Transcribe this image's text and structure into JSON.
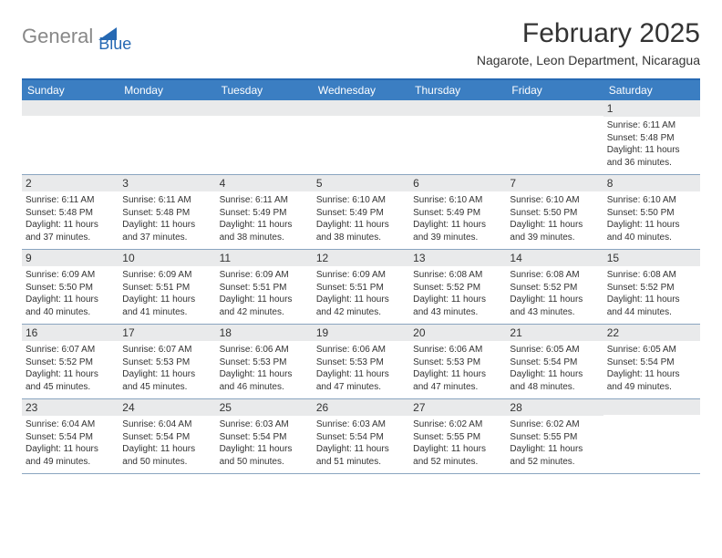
{
  "logo": {
    "part1": "General",
    "part2": "Blue"
  },
  "title": "February 2025",
  "subtitle": "Nagarote, Leon Department, Nicaragua",
  "header_bg": "#3b7ec2",
  "daynum_bg": "#e9eaeb",
  "border_color": "#8aa5c0",
  "day_headers": [
    "Sunday",
    "Monday",
    "Tuesday",
    "Wednesday",
    "Thursday",
    "Friday",
    "Saturday"
  ],
  "weeks": [
    [
      {
        "blank": true
      },
      {
        "blank": true
      },
      {
        "blank": true
      },
      {
        "blank": true
      },
      {
        "blank": true
      },
      {
        "blank": true
      },
      {
        "num": "1",
        "sunrise": "Sunrise: 6:11 AM",
        "sunset": "Sunset: 5:48 PM",
        "daylight1": "Daylight: 11 hours",
        "daylight2": "and 36 minutes."
      }
    ],
    [
      {
        "num": "2",
        "sunrise": "Sunrise: 6:11 AM",
        "sunset": "Sunset: 5:48 PM",
        "daylight1": "Daylight: 11 hours",
        "daylight2": "and 37 minutes."
      },
      {
        "num": "3",
        "sunrise": "Sunrise: 6:11 AM",
        "sunset": "Sunset: 5:48 PM",
        "daylight1": "Daylight: 11 hours",
        "daylight2": "and 37 minutes."
      },
      {
        "num": "4",
        "sunrise": "Sunrise: 6:11 AM",
        "sunset": "Sunset: 5:49 PM",
        "daylight1": "Daylight: 11 hours",
        "daylight2": "and 38 minutes."
      },
      {
        "num": "5",
        "sunrise": "Sunrise: 6:10 AM",
        "sunset": "Sunset: 5:49 PM",
        "daylight1": "Daylight: 11 hours",
        "daylight2": "and 38 minutes."
      },
      {
        "num": "6",
        "sunrise": "Sunrise: 6:10 AM",
        "sunset": "Sunset: 5:49 PM",
        "daylight1": "Daylight: 11 hours",
        "daylight2": "and 39 minutes."
      },
      {
        "num": "7",
        "sunrise": "Sunrise: 6:10 AM",
        "sunset": "Sunset: 5:50 PM",
        "daylight1": "Daylight: 11 hours",
        "daylight2": "and 39 minutes."
      },
      {
        "num": "8",
        "sunrise": "Sunrise: 6:10 AM",
        "sunset": "Sunset: 5:50 PM",
        "daylight1": "Daylight: 11 hours",
        "daylight2": "and 40 minutes."
      }
    ],
    [
      {
        "num": "9",
        "sunrise": "Sunrise: 6:09 AM",
        "sunset": "Sunset: 5:50 PM",
        "daylight1": "Daylight: 11 hours",
        "daylight2": "and 40 minutes."
      },
      {
        "num": "10",
        "sunrise": "Sunrise: 6:09 AM",
        "sunset": "Sunset: 5:51 PM",
        "daylight1": "Daylight: 11 hours",
        "daylight2": "and 41 minutes."
      },
      {
        "num": "11",
        "sunrise": "Sunrise: 6:09 AM",
        "sunset": "Sunset: 5:51 PM",
        "daylight1": "Daylight: 11 hours",
        "daylight2": "and 42 minutes."
      },
      {
        "num": "12",
        "sunrise": "Sunrise: 6:09 AM",
        "sunset": "Sunset: 5:51 PM",
        "daylight1": "Daylight: 11 hours",
        "daylight2": "and 42 minutes."
      },
      {
        "num": "13",
        "sunrise": "Sunrise: 6:08 AM",
        "sunset": "Sunset: 5:52 PM",
        "daylight1": "Daylight: 11 hours",
        "daylight2": "and 43 minutes."
      },
      {
        "num": "14",
        "sunrise": "Sunrise: 6:08 AM",
        "sunset": "Sunset: 5:52 PM",
        "daylight1": "Daylight: 11 hours",
        "daylight2": "and 43 minutes."
      },
      {
        "num": "15",
        "sunrise": "Sunrise: 6:08 AM",
        "sunset": "Sunset: 5:52 PM",
        "daylight1": "Daylight: 11 hours",
        "daylight2": "and 44 minutes."
      }
    ],
    [
      {
        "num": "16",
        "sunrise": "Sunrise: 6:07 AM",
        "sunset": "Sunset: 5:52 PM",
        "daylight1": "Daylight: 11 hours",
        "daylight2": "and 45 minutes."
      },
      {
        "num": "17",
        "sunrise": "Sunrise: 6:07 AM",
        "sunset": "Sunset: 5:53 PM",
        "daylight1": "Daylight: 11 hours",
        "daylight2": "and 45 minutes."
      },
      {
        "num": "18",
        "sunrise": "Sunrise: 6:06 AM",
        "sunset": "Sunset: 5:53 PM",
        "daylight1": "Daylight: 11 hours",
        "daylight2": "and 46 minutes."
      },
      {
        "num": "19",
        "sunrise": "Sunrise: 6:06 AM",
        "sunset": "Sunset: 5:53 PM",
        "daylight1": "Daylight: 11 hours",
        "daylight2": "and 47 minutes."
      },
      {
        "num": "20",
        "sunrise": "Sunrise: 6:06 AM",
        "sunset": "Sunset: 5:53 PM",
        "daylight1": "Daylight: 11 hours",
        "daylight2": "and 47 minutes."
      },
      {
        "num": "21",
        "sunrise": "Sunrise: 6:05 AM",
        "sunset": "Sunset: 5:54 PM",
        "daylight1": "Daylight: 11 hours",
        "daylight2": "and 48 minutes."
      },
      {
        "num": "22",
        "sunrise": "Sunrise: 6:05 AM",
        "sunset": "Sunset: 5:54 PM",
        "daylight1": "Daylight: 11 hours",
        "daylight2": "and 49 minutes."
      }
    ],
    [
      {
        "num": "23",
        "sunrise": "Sunrise: 6:04 AM",
        "sunset": "Sunset: 5:54 PM",
        "daylight1": "Daylight: 11 hours",
        "daylight2": "and 49 minutes."
      },
      {
        "num": "24",
        "sunrise": "Sunrise: 6:04 AM",
        "sunset": "Sunset: 5:54 PM",
        "daylight1": "Daylight: 11 hours",
        "daylight2": "and 50 minutes."
      },
      {
        "num": "25",
        "sunrise": "Sunrise: 6:03 AM",
        "sunset": "Sunset: 5:54 PM",
        "daylight1": "Daylight: 11 hours",
        "daylight2": "and 50 minutes."
      },
      {
        "num": "26",
        "sunrise": "Sunrise: 6:03 AM",
        "sunset": "Sunset: 5:54 PM",
        "daylight1": "Daylight: 11 hours",
        "daylight2": "and 51 minutes."
      },
      {
        "num": "27",
        "sunrise": "Sunrise: 6:02 AM",
        "sunset": "Sunset: 5:55 PM",
        "daylight1": "Daylight: 11 hours",
        "daylight2": "and 52 minutes."
      },
      {
        "num": "28",
        "sunrise": "Sunrise: 6:02 AM",
        "sunset": "Sunset: 5:55 PM",
        "daylight1": "Daylight: 11 hours",
        "daylight2": "and 52 minutes."
      },
      {
        "blank": true
      }
    ]
  ]
}
